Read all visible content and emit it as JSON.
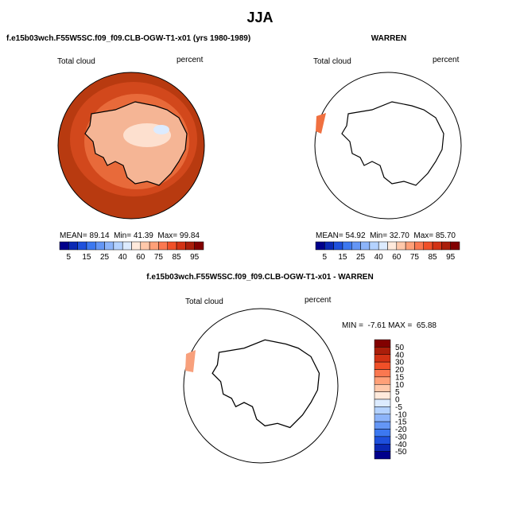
{
  "title": "JJA",
  "panels": [
    {
      "title": "f.e15b03wch.F55W5SC.f09_f09.CLB-OGW-T1-x01 (yrs 1980-1989)",
      "variable": "Total cloud",
      "units": "percent",
      "stats": "MEAN= 89.14  Min= 41.39  Max= 99.84",
      "colorbar": {
        "labels": [
          "5",
          "15",
          "25",
          "40",
          "60",
          "75",
          "85",
          "95"
        ],
        "colors": [
          "#00008b",
          "#0a28b4",
          "#1e50dc",
          "#3c78f0",
          "#6496f5",
          "#8cb4fa",
          "#b4d2ff",
          "#dcebff",
          "#ffeadc",
          "#ffc8aa",
          "#ffa078",
          "#fa7850",
          "#f05028",
          "#d23214",
          "#aa1e0a",
          "#820000"
        ]
      }
    },
    {
      "title": "WARREN",
      "variable": "Total cloud",
      "units": "percent",
      "stats": "MEAN= 54.92  Min= 32.70  Max= 85.70",
      "colorbar": {
        "labels": [
          "5",
          "15",
          "25",
          "40",
          "60",
          "75",
          "85",
          "95"
        ],
        "colors": [
          "#00008b",
          "#0a28b4",
          "#1e50dc",
          "#3c78f0",
          "#6496f5",
          "#8cb4fa",
          "#b4d2ff",
          "#dcebff",
          "#ffeadc",
          "#ffc8aa",
          "#ffa078",
          "#fa7850",
          "#f05028",
          "#d23214",
          "#aa1e0a",
          "#820000"
        ]
      }
    },
    {
      "title": "f.e15b03wch.F55W5SC.f09_f09.CLB-OGW-T1-x01 - WARREN",
      "variable": "Total cloud",
      "units": "percent",
      "stats": "MIN =  -7.61 MAX =  65.88",
      "colorbar": {
        "labels": [
          "50",
          "40",
          "30",
          "20",
          "15",
          "10",
          "5",
          "0",
          "-5",
          "-10",
          "-15",
          "-20",
          "-30",
          "-40",
          "-50"
        ],
        "colors": [
          "#820000",
          "#aa1e0a",
          "#d23214",
          "#f05028",
          "#fa7850",
          "#ffa078",
          "#ffc8aa",
          "#ffeadc",
          "#dcebff",
          "#b4d2ff",
          "#8cb4fa",
          "#6496f5",
          "#3c78f0",
          "#1e50dc",
          "#0a28b4",
          "#00008b"
        ]
      }
    }
  ]
}
